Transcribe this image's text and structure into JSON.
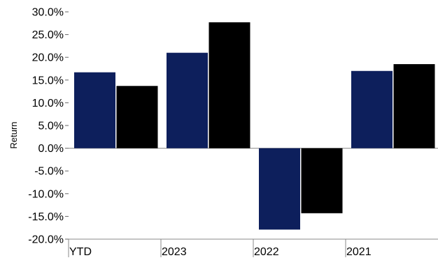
{
  "chart_data": {
    "type": "bar",
    "ylabel": "Return",
    "categories": [
      "YTD",
      "2023",
      "2022",
      "2021"
    ],
    "series": [
      {
        "color": "#0d1f5c",
        "values": [
          16.7,
          21.0,
          -17.9,
          17.0
        ]
      },
      {
        "color": "#000000",
        "values": [
          13.7,
          27.7,
          -14.3,
          18.5
        ]
      }
    ],
    "ylim": [
      -20,
      30
    ],
    "yticks": [
      {
        "value": 30,
        "label": "30.0%"
      },
      {
        "value": 25,
        "label": "25.0%"
      },
      {
        "value": 20,
        "label": "20.0%"
      },
      {
        "value": 15,
        "label": "15.0%"
      },
      {
        "value": 10,
        "label": "10.0%"
      },
      {
        "value": 5,
        "label": "5.0%"
      },
      {
        "value": 0,
        "label": "0.0%"
      },
      {
        "value": -5,
        "label": "-5.0%"
      },
      {
        "value": -10,
        "label": "-10.0%"
      },
      {
        "value": -15,
        "label": "-15.0%"
      },
      {
        "value": -20,
        "label": "-20.0%"
      }
    ],
    "grid": false,
    "legend": "none"
  }
}
